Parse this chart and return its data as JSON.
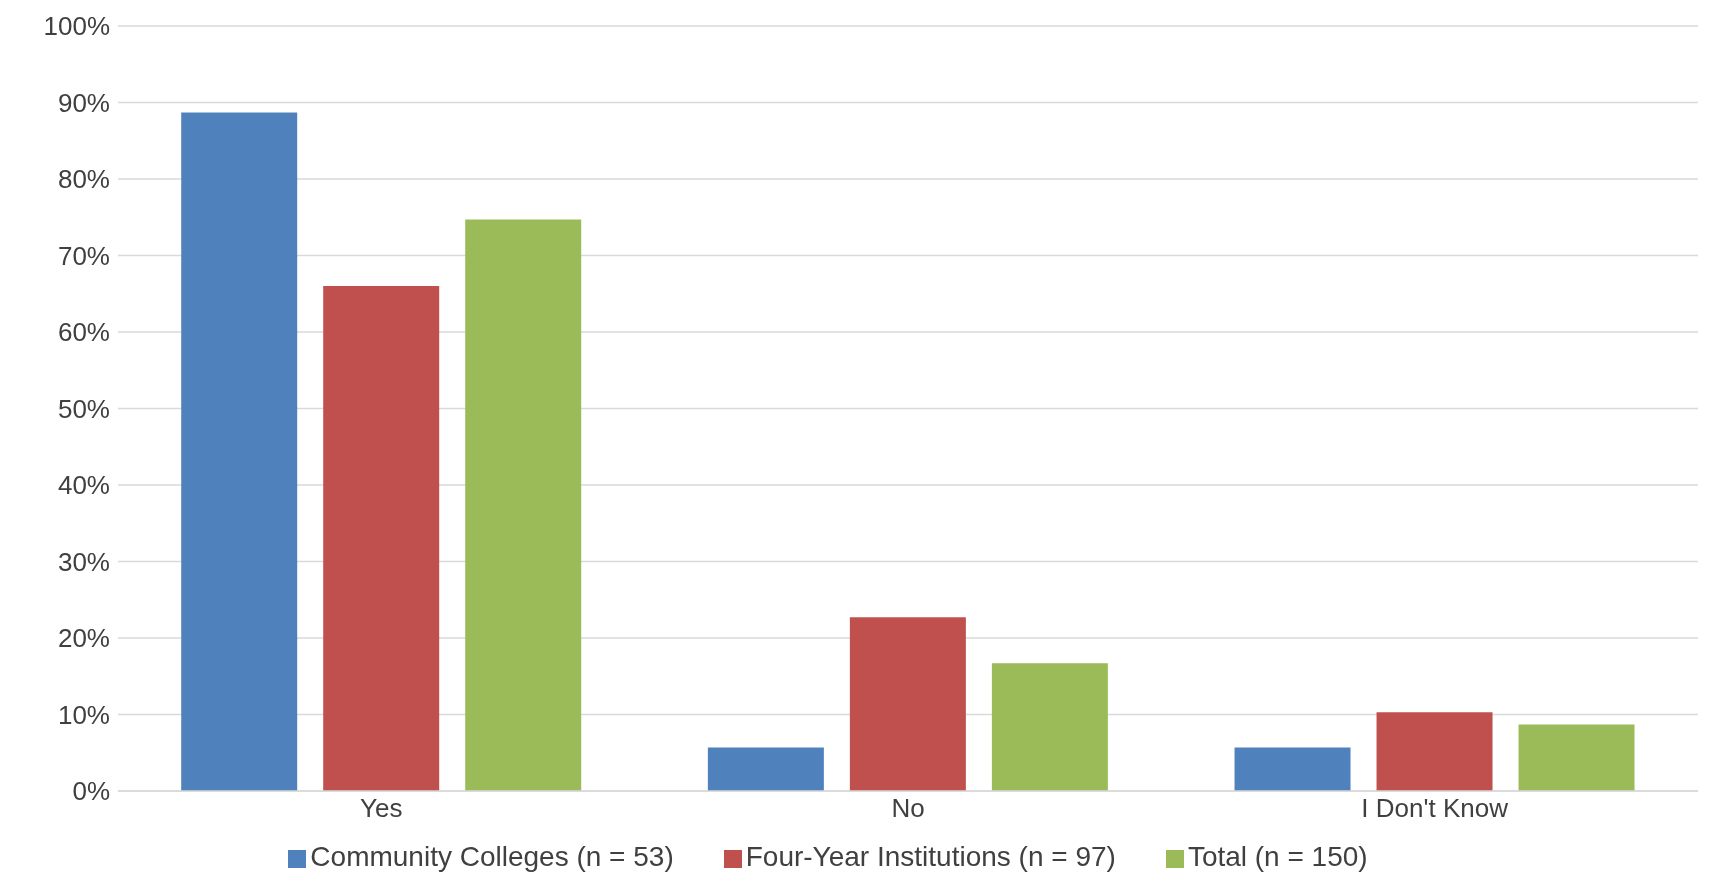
{
  "chart_data": {
    "type": "bar",
    "categories": [
      "Yes",
      "No",
      "I Don't Know"
    ],
    "series": [
      {
        "name": "Community Colleges (n = 53)",
        "color": "#4f81bd",
        "values": [
          88.7,
          5.7,
          5.7
        ]
      },
      {
        "name": "Four-Year Institutions (n = 97)",
        "color": "#c0504d",
        "values": [
          66,
          22.7,
          10.3
        ]
      },
      {
        "name": "Total (n = 150)",
        "color": "#9bbb59",
        "values": [
          74.7,
          16.7,
          8.7
        ]
      }
    ],
    "ylim": [
      0,
      100
    ],
    "yticks": [
      {
        "value": 0,
        "label": "0%"
      },
      {
        "value": 10,
        "label": "10%"
      },
      {
        "value": 20,
        "label": "20%"
      },
      {
        "value": 30,
        "label": "30%"
      },
      {
        "value": 40,
        "label": "40%"
      },
      {
        "value": 50,
        "label": "50%"
      },
      {
        "value": 60,
        "label": "60%"
      },
      {
        "value": 70,
        "label": "70%"
      },
      {
        "value": 80,
        "label": "80%"
      },
      {
        "value": 90,
        "label": "90%"
      },
      {
        "value": 100,
        "label": "100%"
      }
    ],
    "grid": "y",
    "legend": "bottom"
  }
}
